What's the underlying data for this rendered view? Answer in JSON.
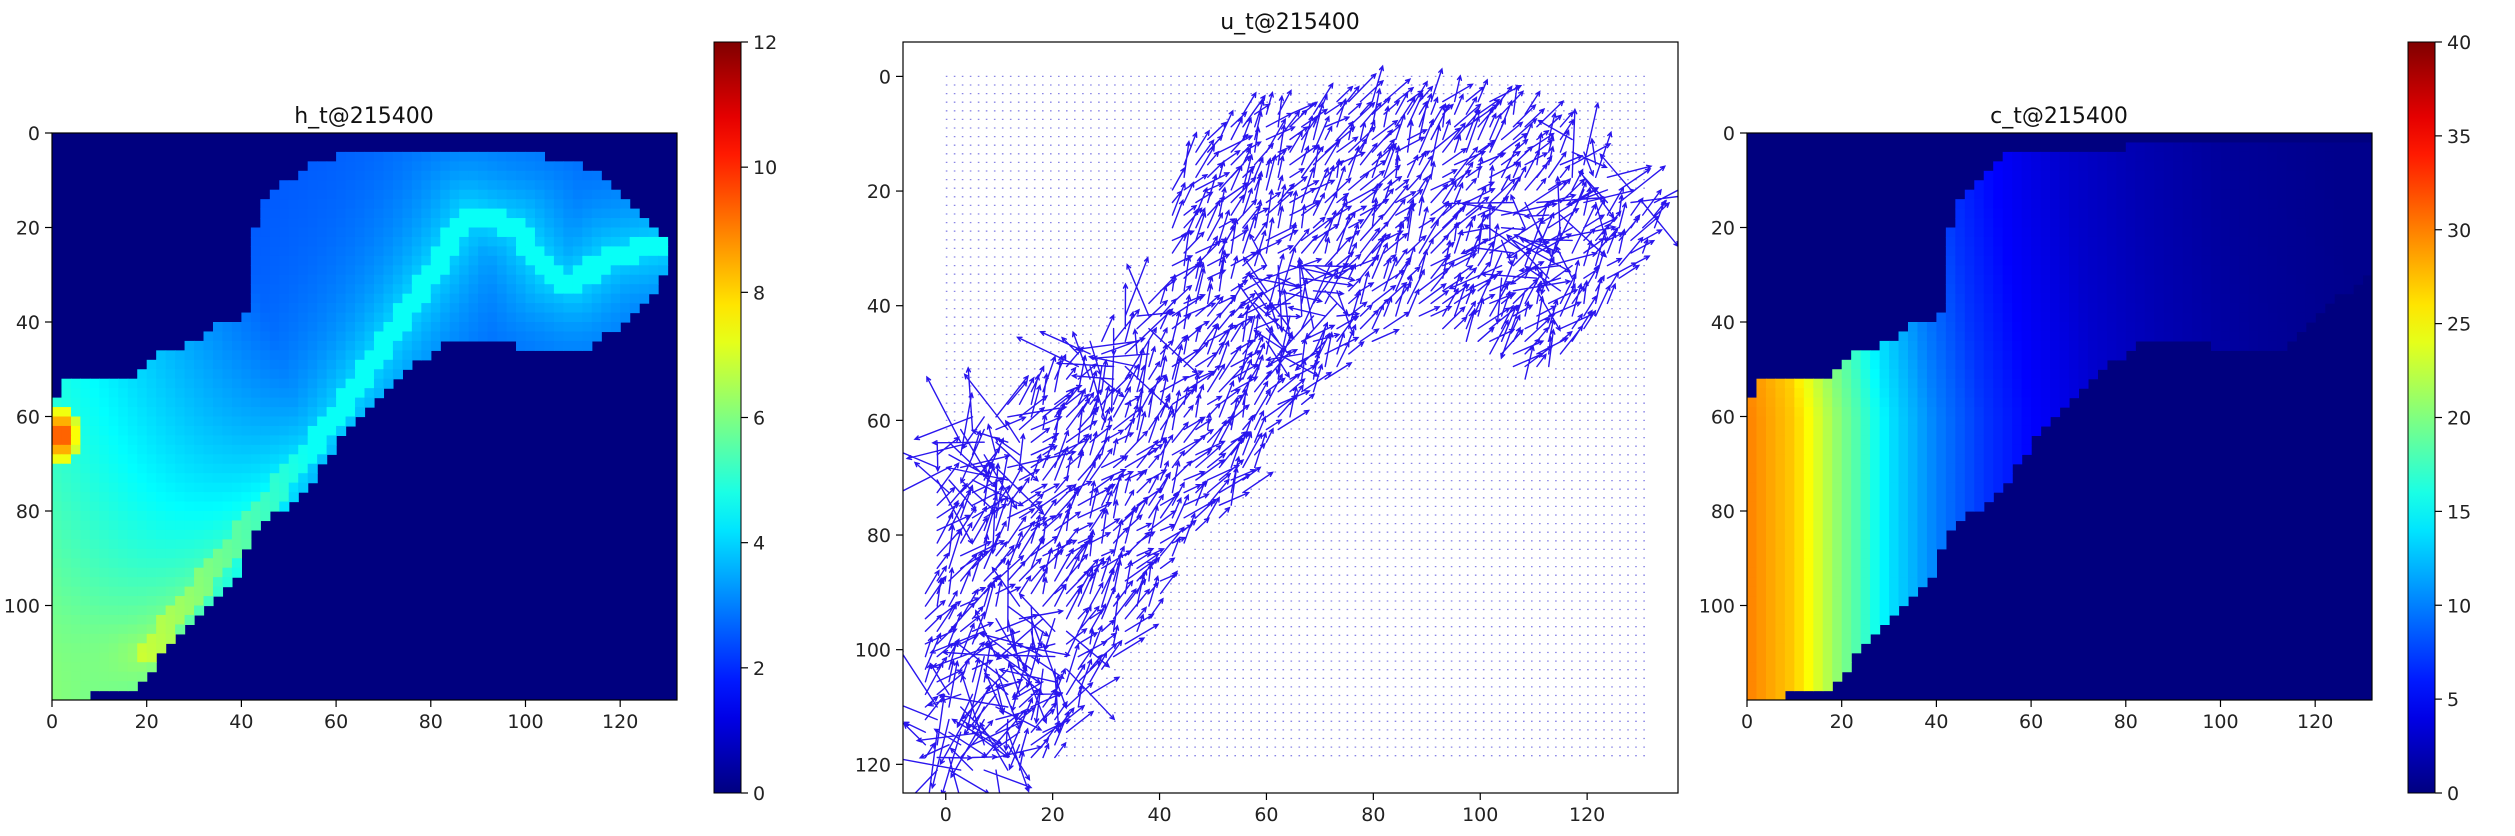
{
  "chart_data": [
    {
      "type": "heatmap",
      "title": "h_t@215400",
      "colormap": "jet",
      "background_color": "#00007f",
      "xlim": [
        0,
        132
      ],
      "ylim": [
        120,
        0
      ],
      "x_ticks": [
        0,
        20,
        40,
        60,
        80,
        100,
        120
      ],
      "y_ticks": [
        0,
        20,
        40,
        60,
        80,
        100
      ],
      "colorbar": {
        "min": 0,
        "max": 12,
        "ticks": [
          0,
          2,
          4,
          6,
          8,
          10,
          12
        ]
      },
      "wet_region": [
        [
          0,
          58
        ],
        [
          3,
          52
        ],
        [
          15,
          52
        ],
        [
          20,
          50
        ],
        [
          23,
          47
        ],
        [
          30,
          44
        ],
        [
          35,
          41
        ],
        [
          40,
          40
        ],
        [
          42,
          35
        ],
        [
          43,
          20
        ],
        [
          45,
          14
        ],
        [
          50,
          10
        ],
        [
          55,
          6
        ],
        [
          60,
          5
        ],
        [
          80,
          5
        ],
        [
          95,
          5
        ],
        [
          105,
          5
        ],
        [
          115,
          8
        ],
        [
          120,
          12
        ],
        [
          126,
          20
        ],
        [
          131,
          24
        ],
        [
          129,
          30
        ],
        [
          125,
          37
        ],
        [
          118,
          42
        ],
        [
          110,
          47
        ],
        [
          105,
          47
        ],
        [
          95,
          44
        ],
        [
          85,
          43
        ],
        [
          75,
          50
        ],
        [
          70,
          56
        ],
        [
          60,
          66
        ],
        [
          55,
          74
        ],
        [
          48,
          80
        ],
        [
          42,
          86
        ],
        [
          38,
          96
        ],
        [
          30,
          104
        ],
        [
          22,
          112
        ],
        [
          18,
          118
        ],
        [
          12,
          118
        ],
        [
          5,
          120
        ],
        [
          0,
          120
        ]
      ],
      "field": {
        "channel_line": [
          [
            20,
            110
          ],
          [
            40,
            85
          ],
          [
            60,
            60
          ],
          [
            80,
            30
          ],
          [
            88,
            17
          ],
          [
            98,
            20
          ],
          [
            105,
            30
          ],
          [
            110,
            32
          ],
          [
            118,
            26
          ],
          [
            128,
            24
          ]
        ],
        "channel_value": 4.6,
        "near_channel_value": 4.2,
        "far_value": 2.5,
        "west_bank_value": 6.2,
        "hotspot": {
          "x": 2,
          "y": 64,
          "value": 10.5
        }
      }
    },
    {
      "type": "quiver",
      "title": "u_t@215400",
      "color": "#2a16ee",
      "xlim": [
        -8,
        137
      ],
      "ylim": [
        125,
        -6
      ],
      "x_ticks": [
        0,
        20,
        40,
        60,
        80,
        100,
        120
      ],
      "y_ticks": [
        0,
        20,
        40,
        60,
        80,
        100,
        120
      ],
      "grid_dots": {
        "x_range": [
          0,
          131
        ],
        "y_range": [
          0,
          119
        ],
        "step": 1.5
      },
      "flow_region": [
        [
          -2,
          64
        ],
        [
          3,
          60
        ],
        [
          15,
          55
        ],
        [
          20,
          52
        ],
        [
          25,
          47
        ],
        [
          30,
          44
        ],
        [
          35,
          40
        ],
        [
          40,
          38
        ],
        [
          41,
          30
        ],
        [
          42,
          20
        ],
        [
          44,
          14
        ],
        [
          50,
          10
        ],
        [
          55,
          6
        ],
        [
          60,
          5
        ],
        [
          80,
          4
        ],
        [
          95,
          3
        ],
        [
          105,
          5
        ],
        [
          115,
          8
        ],
        [
          120,
          12
        ],
        [
          126,
          18
        ],
        [
          134,
          22
        ],
        [
          133,
          28
        ],
        [
          128,
          35
        ],
        [
          120,
          44
        ],
        [
          115,
          50
        ],
        [
          108,
          53
        ],
        [
          100,
          48
        ],
        [
          92,
          44
        ],
        [
          85,
          43
        ],
        [
          75,
          50
        ],
        [
          70,
          56
        ],
        [
          60,
          66
        ],
        [
          55,
          74
        ],
        [
          48,
          80
        ],
        [
          42,
          86
        ],
        [
          38,
          96
        ],
        [
          30,
          104
        ],
        [
          24,
          112
        ],
        [
          20,
          120
        ],
        [
          12,
          122
        ],
        [
          0,
          122
        ],
        [
          -6,
          120
        ]
      ]
    },
    {
      "type": "heatmap",
      "title": "c_t@215400",
      "colormap": "jet",
      "background_color": "#00007f",
      "xlim": [
        0,
        132
      ],
      "ylim": [
        120,
        0
      ],
      "x_ticks": [
        0,
        20,
        40,
        60,
        80,
        100,
        120
      ],
      "y_ticks": [
        0,
        20,
        40,
        60,
        80,
        100
      ],
      "colorbar": {
        "min": 0,
        "max": 40,
        "ticks": [
          0,
          5,
          10,
          15,
          20,
          25,
          30,
          35,
          40
        ]
      },
      "wet_region": [
        [
          0,
          58
        ],
        [
          3,
          52
        ],
        [
          15,
          52
        ],
        [
          20,
          50
        ],
        [
          23,
          47
        ],
        [
          30,
          44
        ],
        [
          35,
          41
        ],
        [
          40,
          40
        ],
        [
          42,
          35
        ],
        [
          43,
          20
        ],
        [
          45,
          14
        ],
        [
          50,
          10
        ],
        [
          52,
          6
        ],
        [
          55,
          5
        ],
        [
          80,
          3
        ],
        [
          95,
          2
        ],
        [
          110,
          2
        ],
        [
          132,
          2
        ],
        [
          132,
          30
        ],
        [
          125,
          35
        ],
        [
          118,
          42
        ],
        [
          110,
          47
        ],
        [
          105,
          47
        ],
        [
          95,
          44
        ],
        [
          85,
          43
        ],
        [
          75,
          50
        ],
        [
          70,
          56
        ],
        [
          60,
          66
        ],
        [
          55,
          74
        ],
        [
          48,
          80
        ],
        [
          42,
          86
        ],
        [
          38,
          96
        ],
        [
          30,
          104
        ],
        [
          22,
          112
        ],
        [
          18,
          118
        ],
        [
          12,
          118
        ],
        [
          5,
          120
        ],
        [
          0,
          120
        ]
      ],
      "field": {
        "gradient_stops": [
          [
            0,
            30
          ],
          [
            10,
            27
          ],
          [
            20,
            20
          ],
          [
            30,
            14
          ],
          [
            40,
            10
          ],
          [
            50,
            7
          ],
          [
            60,
            5
          ],
          [
            75,
            3
          ],
          [
            90,
            2
          ],
          [
            110,
            1
          ],
          [
            132,
            0.5
          ]
        ]
      }
    }
  ]
}
